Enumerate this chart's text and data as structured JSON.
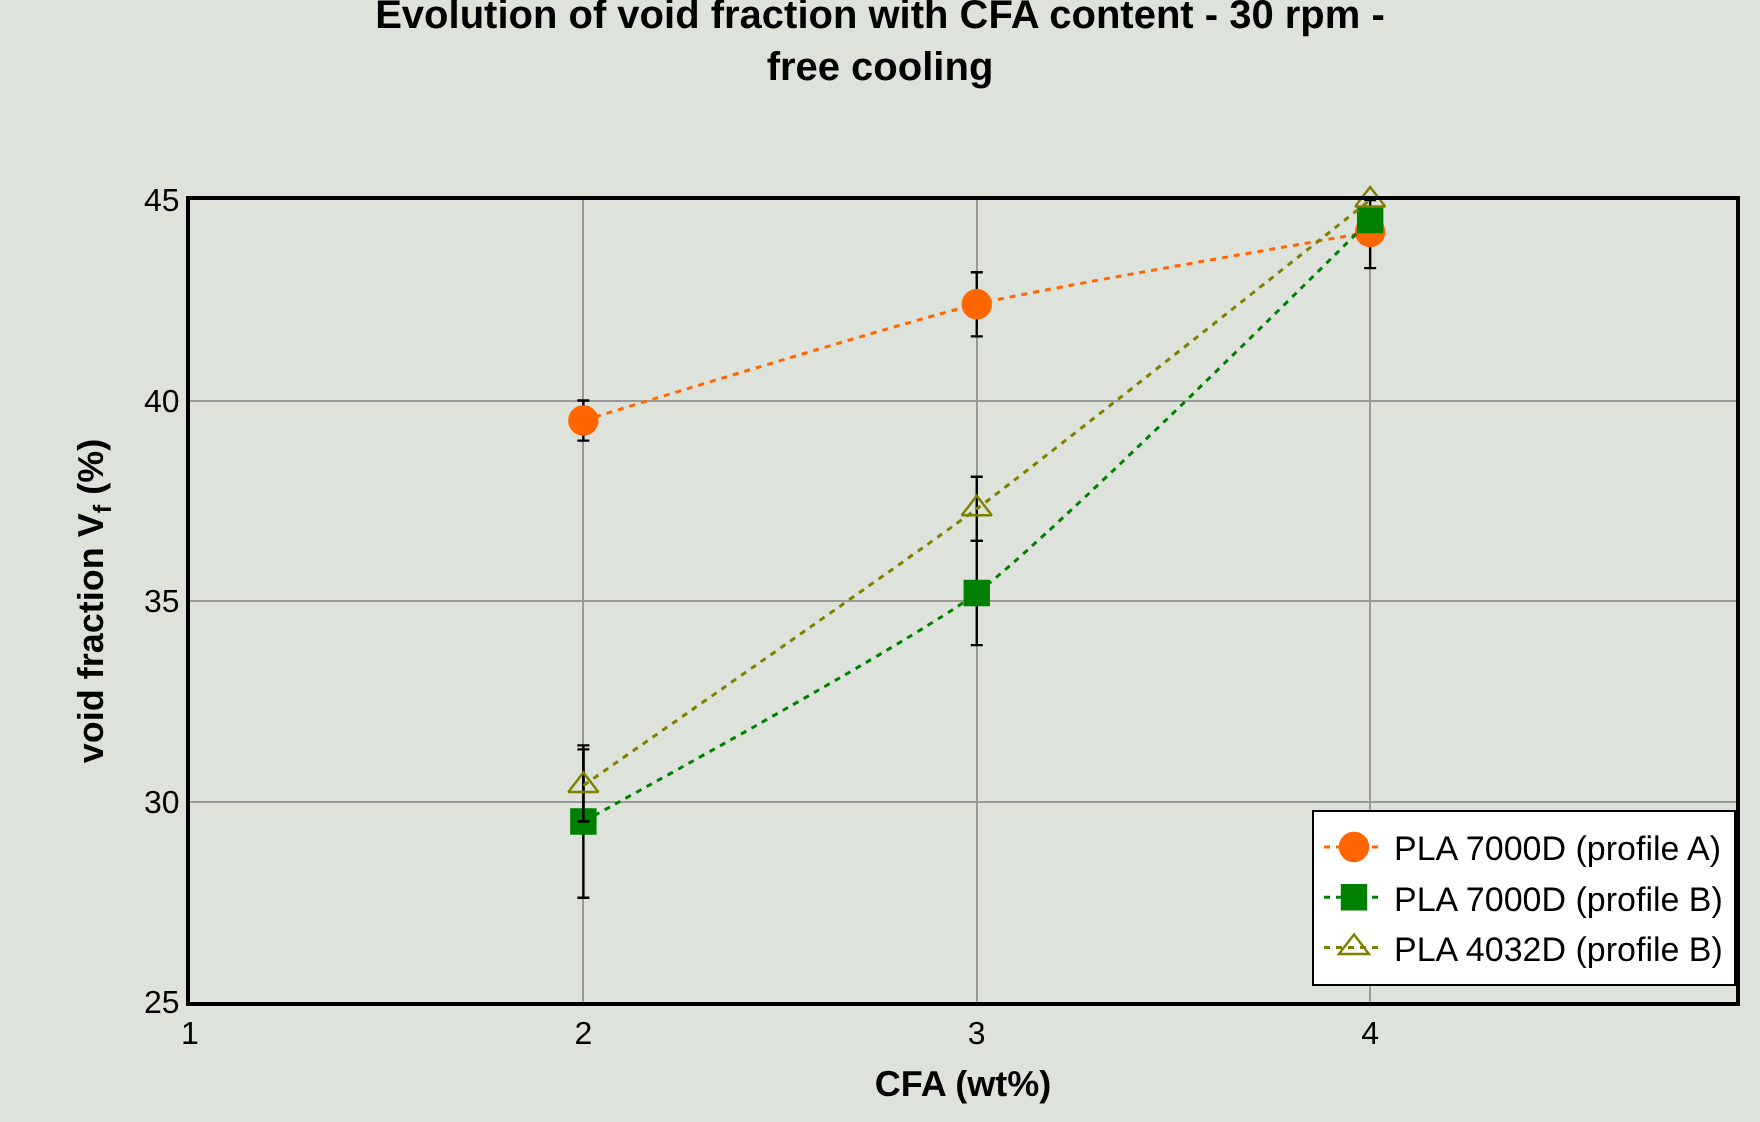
{
  "chart_data": {
    "type": "line",
    "title": "Evolution of void fraction with CFA content - 30 rpm -\nfree cooling",
    "xlabel": "CFA (wt%)",
    "ylabel": "void fraction V$_{f}$ (%)",
    "x": [
      2,
      3,
      4
    ],
    "xlim": [
      1,
      4.93
    ],
    "xticks": [
      1,
      2,
      3,
      4
    ],
    "ylim": [
      25,
      45
    ],
    "yticks": [
      25,
      30,
      35,
      40,
      45
    ],
    "grid": true,
    "legend": "bottom right",
    "line_style": "dotted",
    "series": [
      {
        "name": "PLA 7000D (profile A)",
        "color": "#ff6600",
        "marker": "circle",
        "values": [
          39.5,
          42.4,
          44.2
        ],
        "errors": [
          0.5,
          0.8,
          0.9
        ]
      },
      {
        "name": "PLA 7000D (profile B)",
        "color": "#008000",
        "marker": "square",
        "values": [
          29.5,
          35.2,
          44.5
        ],
        "errors": [
          1.9,
          1.3,
          null
        ]
      },
      {
        "name": "PLA 4032D (profile B)",
        "color": "#808000",
        "marker": "triangle",
        "values": [
          30.4,
          37.3,
          45.0
        ],
        "errors": [
          0.9,
          0.8,
          null
        ]
      }
    ]
  }
}
